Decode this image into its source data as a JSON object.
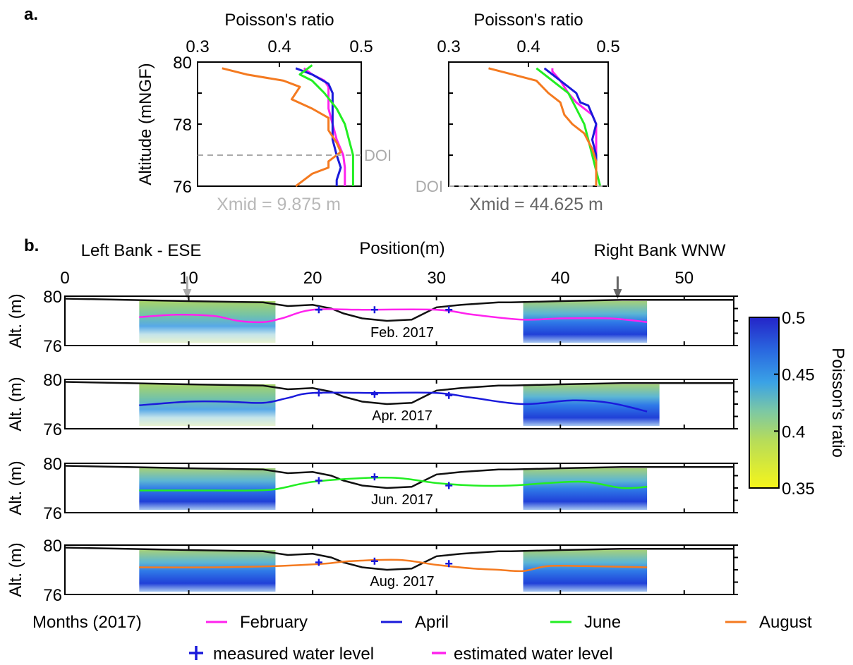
{
  "figure": {
    "panel_a_label": "a.",
    "panel_b_label": "b."
  },
  "colors": {
    "February": "#ff22ee",
    "April": "#1a1adb",
    "June": "#22ee22",
    "August": "#f47a20",
    "surface": "#111111",
    "doi": "#aaaaaa",
    "marker": "#1a1adb"
  },
  "chart_data": [
    {
      "type": "line",
      "panel": "a-left",
      "xlabel": "Poisson's ratio",
      "ylabel": "Altitude (mNGF)",
      "xlim": [
        0.3,
        0.5
      ],
      "ylim": [
        76,
        80
      ],
      "xticks": [
        "0.3",
        "0.4",
        "0.5"
      ],
      "yticks": [
        "76",
        "78",
        "80"
      ],
      "doi_label": "DOI",
      "doi_altitude": 77.0,
      "annotation": "Xmid = 9.875 m",
      "series": [
        {
          "name": "February",
          "points": [
            [
              0.43,
              79.8
            ],
            [
              0.44,
              79.6
            ],
            [
              0.455,
              79.4
            ],
            [
              0.46,
              79.2
            ],
            [
              0.46,
              79.0
            ],
            [
              0.46,
              78.8
            ],
            [
              0.46,
              78.5
            ],
            [
              0.465,
              78.0
            ],
            [
              0.47,
              77.5
            ],
            [
              0.478,
              77.0
            ],
            [
              0.48,
              76.6
            ],
            [
              0.48,
              76.2
            ],
            [
              0.48,
              76.0
            ]
          ]
        },
        {
          "name": "April",
          "points": [
            [
              0.42,
              79.8
            ],
            [
              0.44,
              79.6
            ],
            [
              0.46,
              79.3
            ],
            [
              0.465,
              79.0
            ],
            [
              0.465,
              78.5
            ],
            [
              0.465,
              78.0
            ],
            [
              0.465,
              77.5
            ],
            [
              0.47,
              77.0
            ],
            [
              0.475,
              76.6
            ],
            [
              0.47,
              76.2
            ],
            [
              0.47,
              76.0
            ]
          ]
        },
        {
          "name": "June",
          "points": [
            [
              0.44,
              79.9
            ],
            [
              0.425,
              79.6
            ],
            [
              0.44,
              79.4
            ],
            [
              0.455,
              79.0
            ],
            [
              0.47,
              78.5
            ],
            [
              0.48,
              78.0
            ],
            [
              0.485,
              77.5
            ],
            [
              0.49,
              77.0
            ],
            [
              0.49,
              76.5
            ],
            [
              0.49,
              76.0
            ]
          ]
        },
        {
          "name": "August",
          "points": [
            [
              0.33,
              79.8
            ],
            [
              0.36,
              79.6
            ],
            [
              0.405,
              79.4
            ],
            [
              0.425,
              79.2
            ],
            [
              0.415,
              78.8
            ],
            [
              0.44,
              78.5
            ],
            [
              0.46,
              78.2
            ],
            [
              0.46,
              77.8
            ],
            [
              0.47,
              77.4
            ],
            [
              0.475,
              77.1
            ],
            [
              0.46,
              76.8
            ],
            [
              0.46,
              76.6
            ],
            [
              0.44,
              76.4
            ],
            [
              0.43,
              76.2
            ],
            [
              0.42,
              76.0
            ]
          ]
        }
      ]
    },
    {
      "type": "line",
      "panel": "a-right",
      "xlabel": "Poisson's ratio",
      "ylabel": "",
      "xlim": [
        0.3,
        0.5
      ],
      "ylim": [
        76,
        80
      ],
      "xticks": [
        "0.3",
        "0.4",
        "0.5"
      ],
      "doi_label": "DOI",
      "doi_altitude": 76.0,
      "annotation": "Xmid = 44.625 m",
      "series": [
        {
          "name": "February",
          "points": [
            [
              0.43,
              79.8
            ],
            [
              0.43,
              79.7
            ],
            [
              0.44,
              79.4
            ],
            [
              0.45,
              79.0
            ],
            [
              0.46,
              78.7
            ],
            [
              0.47,
              78.5
            ],
            [
              0.48,
              78.3
            ],
            [
              0.485,
              78.0
            ],
            [
              0.485,
              77.5
            ],
            [
              0.485,
              77.0
            ],
            [
              0.485,
              76.5
            ],
            [
              0.485,
              76.0
            ]
          ]
        },
        {
          "name": "April",
          "points": [
            [
              0.42,
              79.8
            ],
            [
              0.43,
              79.6
            ],
            [
              0.445,
              79.3
            ],
            [
              0.46,
              79.0
            ],
            [
              0.465,
              78.7
            ],
            [
              0.475,
              78.6
            ],
            [
              0.48,
              78.3
            ],
            [
              0.485,
              78.0
            ],
            [
              0.48,
              77.5
            ],
            [
              0.485,
              77.0
            ],
            [
              0.485,
              76.5
            ],
            [
              0.485,
              76.0
            ]
          ]
        },
        {
          "name": "June",
          "points": [
            [
              0.41,
              79.8
            ],
            [
              0.42,
              79.6
            ],
            [
              0.435,
              79.3
            ],
            [
              0.45,
              79.0
            ],
            [
              0.46,
              78.5
            ],
            [
              0.47,
              78.0
            ],
            [
              0.475,
              77.5
            ],
            [
              0.48,
              77.0
            ],
            [
              0.485,
              76.5
            ],
            [
              0.49,
              76.0
            ]
          ]
        },
        {
          "name": "August",
          "points": [
            [
              0.35,
              79.8
            ],
            [
              0.38,
              79.6
            ],
            [
              0.41,
              79.4
            ],
            [
              0.425,
              79.0
            ],
            [
              0.44,
              78.7
            ],
            [
              0.445,
              78.3
            ],
            [
              0.455,
              78.0
            ],
            [
              0.47,
              77.7
            ],
            [
              0.48,
              77.2
            ],
            [
              0.485,
              76.8
            ],
            [
              0.485,
              76.0
            ]
          ]
        }
      ]
    },
    {
      "type": "heatmap",
      "panel": "b",
      "title_left": "Left Bank - ESE",
      "title_center": "Position(m)",
      "title_right": "Right Bank WNW",
      "xlim": [
        0,
        54
      ],
      "xticks": [
        "0",
        "10",
        "20",
        "30",
        "40",
        "50"
      ],
      "ylabel": "Alt. (m)",
      "ylim": [
        76,
        80
      ],
      "yticks": [
        "76",
        "80"
      ],
      "arrow_positions": [
        9.875,
        44.625
      ],
      "colorbar": {
        "label": "Poisson’s ratio",
        "range": [
          0.35,
          0.5
        ],
        "ticks": [
          "0.5",
          "0.45",
          "0.4",
          "0.35"
        ]
      },
      "surface_profile": [
        [
          0,
          79.8
        ],
        [
          5,
          79.7
        ],
        [
          10,
          79.6
        ],
        [
          16,
          79.5
        ],
        [
          18,
          79.2
        ],
        [
          20,
          79.3
        ],
        [
          21.5,
          79.0
        ],
        [
          22.5,
          78.6
        ],
        [
          24,
          78.2
        ],
        [
          26,
          78.0
        ],
        [
          28,
          78.1
        ],
        [
          29,
          78.6
        ],
        [
          30,
          79.1
        ],
        [
          32,
          79.3
        ],
        [
          35,
          79.5
        ],
        [
          36,
          79.5
        ],
        [
          40,
          79.6
        ],
        [
          45,
          79.7
        ],
        [
          50,
          79.7
        ],
        [
          54,
          79.7
        ]
      ],
      "rows": [
        {
          "label": "Feb. 2017",
          "series": "February",
          "blocks": [
            [
              6,
              17,
              "warm"
            ],
            [
              37,
              47,
              "cool"
            ]
          ],
          "water_level": [
            [
              6,
              78.3
            ],
            [
              9,
              78.5
            ],
            [
              12,
              78.4
            ],
            [
              14,
              78.0
            ],
            [
              16,
              77.9
            ],
            [
              17.5,
              78.2
            ],
            [
              20,
              78.9
            ],
            [
              24,
              78.9
            ],
            [
              30,
              78.9
            ],
            [
              33,
              78.5
            ],
            [
              37,
              78.1
            ],
            [
              40,
              78.2
            ],
            [
              44,
              78.2
            ],
            [
              47,
              77.9
            ]
          ],
          "measured": [
            [
              20.5,
              78.9
            ],
            [
              25,
              78.9
            ],
            [
              31,
              78.9
            ]
          ]
        },
        {
          "label": "Apr. 2017",
          "series": "April",
          "blocks": [
            [
              6,
              17,
              "warm"
            ],
            [
              37,
              48,
              "cool"
            ]
          ],
          "water_level": [
            [
              6,
              77.9
            ],
            [
              10,
              78.2
            ],
            [
              13,
              78.2
            ],
            [
              16,
              78.1
            ],
            [
              18,
              78.5
            ],
            [
              20,
              78.9
            ],
            [
              25,
              78.9
            ],
            [
              30,
              78.9
            ],
            [
              33,
              78.5
            ],
            [
              37,
              78.0
            ],
            [
              41,
              78.3
            ],
            [
              44,
              78.1
            ],
            [
              47,
              77.4
            ]
          ],
          "measured": [
            [
              20.5,
              78.9
            ],
            [
              25,
              78.8
            ],
            [
              31,
              78.7
            ]
          ]
        },
        {
          "label": "Jun. 2017",
          "series": "June",
          "blocks": [
            [
              6,
              17,
              "cool"
            ],
            [
              37,
              47,
              "cool"
            ]
          ],
          "water_level": [
            [
              6,
              77.8
            ],
            [
              12,
              77.8
            ],
            [
              15,
              77.8
            ],
            [
              17,
              77.9
            ],
            [
              20,
              78.5
            ],
            [
              24,
              78.8
            ],
            [
              27,
              78.8
            ],
            [
              30,
              78.4
            ],
            [
              33,
              78.2
            ],
            [
              36,
              78.2
            ],
            [
              39,
              78.4
            ],
            [
              42,
              78.5
            ],
            [
              45,
              78.0
            ],
            [
              47,
              78.1
            ]
          ],
          "measured": [
            [
              20.5,
              78.6
            ],
            [
              25,
              78.9
            ],
            [
              31,
              78.2
            ]
          ]
        },
        {
          "label": "Aug. 2017",
          "series": "August",
          "blocks": [
            [
              6,
              17,
              "cool"
            ],
            [
              37,
              47,
              "cool"
            ]
          ],
          "water_level": [
            [
              6,
              78.2
            ],
            [
              12,
              78.2
            ],
            [
              17,
              78.3
            ],
            [
              21,
              78.5
            ],
            [
              23,
              78.7
            ],
            [
              27,
              78.8
            ],
            [
              30,
              78.4
            ],
            [
              33,
              78.1
            ],
            [
              35,
              78.0
            ],
            [
              37,
              77.9
            ],
            [
              39,
              78.3
            ],
            [
              42,
              78.3
            ],
            [
              47,
              78.2
            ]
          ],
          "measured": [
            [
              20.5,
              78.6
            ],
            [
              25,
              78.7
            ],
            [
              31,
              78.5
            ]
          ]
        }
      ]
    }
  ],
  "legend": {
    "title": "Months (2017)",
    "items": [
      "February",
      "April",
      "June",
      "August"
    ],
    "measured_label": "measured water level",
    "estimated_label": "estimated water level"
  }
}
